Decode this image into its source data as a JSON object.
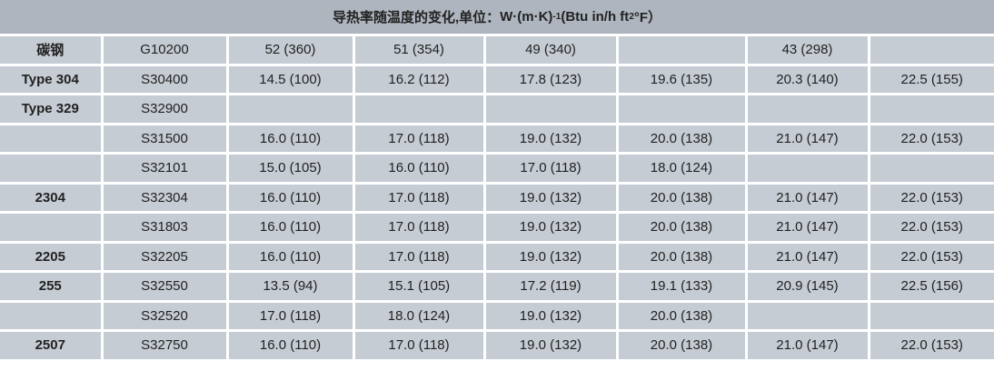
{
  "header": {
    "title_prefix": "导热率随温度的变化,单位：",
    "unit_a": "W·(m·K)",
    "unit_a_exp": "-1",
    "unit_b": "(Btu in/h ft",
    "unit_b_exp": "2",
    "unit_b_end": "°F）"
  },
  "rows": [
    [
      "碳钢",
      "G10200",
      "52 (360)",
      "51 (354)",
      "49 (340)",
      "",
      "43 (298)",
      ""
    ],
    [
      "Type 304",
      "S30400",
      "14.5 (100)",
      "16.2 (112)",
      "17.8 (123)",
      "19.6 (135)",
      "20.3 (140)",
      "22.5 (155)"
    ],
    [
      "Type 329",
      "S32900",
      "",
      "",
      "",
      "",
      "",
      ""
    ],
    [
      "",
      "S31500",
      "16.0 (110)",
      "17.0 (118)",
      "19.0 (132)",
      "20.0 (138)",
      "21.0 (147)",
      "22.0 (153)"
    ],
    [
      "",
      "S32101",
      "15.0 (105)",
      "16.0 (110)",
      "17.0 (118)",
      "18.0 (124)",
      "",
      ""
    ],
    [
      "2304",
      "S32304",
      "16.0 (110)",
      "17.0 (118)",
      "19.0 (132)",
      "20.0 (138)",
      "21.0 (147)",
      "22.0 (153)"
    ],
    [
      "",
      "S31803",
      "16.0 (110)",
      "17.0 (118)",
      "19.0 (132)",
      "20.0 (138)",
      "21.0 (147)",
      "22.0 (153)"
    ],
    [
      "2205",
      "S32205",
      "16.0 (110)",
      "17.0 (118)",
      "19.0 (132)",
      "20.0 (138)",
      "21.0 (147)",
      "22.0 (153)"
    ],
    [
      "255",
      "S32550",
      "13.5 (94)",
      "15.1 (105)",
      "17.2 (119)",
      "19.1 (133)",
      "20.9 (145)",
      "22.5 (156)"
    ],
    [
      "",
      "S32520",
      "17.0 (118)",
      "18.0 (124)",
      "19.0 (132)",
      "20.0 (138)",
      "",
      ""
    ],
    [
      "2507",
      "S32750",
      "16.0 (110)",
      "17.0 (118)",
      "19.0 (132)",
      "20.0 (138)",
      "21.0 (147)",
      "22.0 (153)"
    ]
  ],
  "colors": {
    "header_bg": "#aeb5be",
    "cell_bg": "#c6ccd4",
    "grid": "#ffffff"
  }
}
